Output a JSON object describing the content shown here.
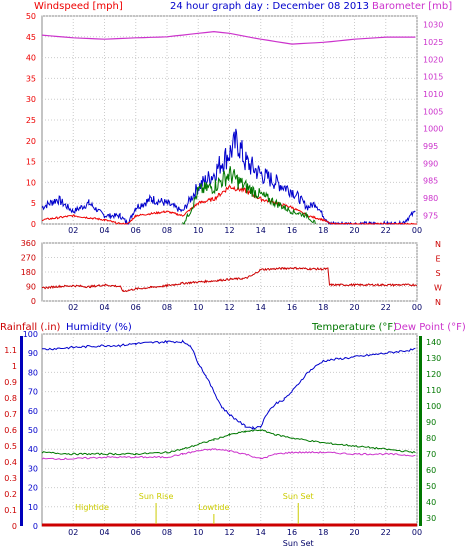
{
  "header": {
    "title": "24 hour graph day : December 08 2013",
    "left_label": "Windspeed [mph]",
    "right_label": "Barometer [mb]"
  },
  "bottom_header": {
    "rainfall": "Rainfall (.in)",
    "humidity": "Humidity (%)",
    "temperature": "Temperature (°F)",
    "dewpoint": "Dew Point (°F)"
  },
  "colors": {
    "wind": "#ee0000",
    "gust": "#0000cc",
    "green": "#007700",
    "barometer": "#cc33cc",
    "direction": "#cc0000",
    "humidity": "#0000cc",
    "temperature": "#007700",
    "dewpoint": "#cc33cc",
    "rain_axis": "#0000bb",
    "temp_axis": "#007700",
    "annotation": "#cccc00",
    "frame": "#888888",
    "grid": "#cccccc"
  },
  "chart_data": [
    {
      "type": "line",
      "name": "wind-barometer",
      "x_ticks": [
        "02",
        "04",
        "06",
        "08",
        "10",
        "12",
        "14",
        "16",
        "18",
        "20",
        "22",
        "00"
      ],
      "left_axis": {
        "label": "Windspeed [mph]",
        "ticks": [
          0,
          5,
          10,
          15,
          20,
          25,
          30,
          35,
          40,
          45,
          50
        ],
        "ylim": [
          0,
          50
        ]
      },
      "right_axis": {
        "label": "Barometer [mb]",
        "ticks": [
          975,
          980,
          985,
          990,
          995,
          1000,
          1005,
          1010,
          1015,
          1020,
          1025,
          1030
        ],
        "ylim": [
          972.5,
          1032.5
        ]
      },
      "series": [
        {
          "key": "gust",
          "axis": "left",
          "x": [
            0,
            1,
            2,
            3,
            4,
            5,
            5.5,
            6,
            7,
            8,
            9,
            10,
            11,
            11.5,
            12,
            12.5,
            13,
            14,
            15,
            16,
            17,
            17.5,
            18,
            18.5,
            19,
            20,
            21,
            22,
            23,
            23.9
          ],
          "values": [
            4,
            6,
            3,
            5,
            2,
            2,
            0,
            4,
            6,
            5,
            3,
            9,
            12,
            15,
            17,
            20,
            15,
            12,
            10,
            8,
            4,
            5,
            2,
            0,
            0,
            0,
            0,
            0,
            0,
            3
          ]
        },
        {
          "key": "wind",
          "axis": "left",
          "x": [
            0,
            2,
            4,
            5,
            5.5,
            6,
            8,
            9,
            10,
            11,
            12,
            13,
            14,
            15,
            16,
            17,
            18,
            18.5,
            24
          ],
          "values": [
            1,
            2,
            1,
            0,
            0,
            2,
            3,
            2,
            5,
            6,
            9,
            8,
            6,
            5,
            4,
            2,
            1,
            0,
            0
          ]
        },
        {
          "key": "green",
          "axis": "left",
          "x": [
            9,
            9.5,
            10,
            11,
            12,
            13,
            14,
            15,
            16,
            17,
            17.5
          ],
          "values": [
            0,
            3,
            8,
            9,
            12,
            9,
            7,
            5,
            3,
            2,
            0
          ]
        },
        {
          "key": "barometer",
          "axis": "right",
          "x": [
            0,
            2,
            4,
            6,
            8,
            10,
            11,
            12,
            14,
            16,
            18,
            20,
            22,
            23.9
          ],
          "values": [
            1027.0,
            1026.2,
            1025.8,
            1026.2,
            1026.5,
            1027.5,
            1028.0,
            1027.5,
            1025.8,
            1024.4,
            1024.9,
            1025.8,
            1026.4,
            1026.4
          ]
        }
      ]
    },
    {
      "type": "line",
      "name": "wind-direction",
      "x_ticks": [
        "02",
        "04",
        "06",
        "08",
        "10",
        "12",
        "14",
        "16",
        "18",
        "20",
        "22",
        "00"
      ],
      "left_axis": {
        "ticks": [
          0,
          90,
          180,
          270,
          360
        ],
        "ylim": [
          0,
          360
        ]
      },
      "right_axis": {
        "ticks": [
          "N",
          "W",
          "S",
          "E",
          "N"
        ]
      },
      "series": [
        {
          "key": "direction",
          "x": [
            0,
            1,
            2,
            3,
            4,
            5,
            5.2,
            6,
            7,
            8,
            9,
            10,
            11,
            12,
            13,
            13.5,
            14,
            15,
            16,
            17,
            18,
            18.3,
            18.4,
            20,
            22,
            24
          ],
          "values": [
            80,
            90,
            95,
            88,
            100,
            90,
            60,
            75,
            85,
            95,
            110,
            118,
            125,
            135,
            140,
            160,
            195,
            200,
            205,
            200,
            198,
            200,
            100,
            100,
            100,
            100
          ]
        }
      ]
    },
    {
      "type": "line",
      "name": "rain-humidity-temperature",
      "x_ticks": [
        "02",
        "04",
        "06",
        "08",
        "10",
        "12",
        "14",
        "16",
        "18",
        "20",
        "22",
        "00"
      ],
      "left_axis": {
        "label": "Humidity (%)",
        "ticks": [
          0,
          10,
          20,
          30,
          40,
          50,
          60,
          70,
          80,
          90,
          100
        ],
        "ylim": [
          0,
          100
        ]
      },
      "rain_axis": {
        "label": "Rainfall (.in)",
        "ticks": [
          0,
          0.1,
          0.2,
          0.3,
          0.4,
          0.5,
          0.6,
          0.7,
          0.8,
          0.9,
          1,
          1.1
        ],
        "ylim": [
          0,
          1.2
        ]
      },
      "right_axis": {
        "label": "Temperature (°F)",
        "ticks": [
          30,
          40,
          50,
          60,
          70,
          80,
          90,
          100,
          110,
          120,
          130,
          140
        ],
        "ylim": [
          25,
          145
        ]
      },
      "series": [
        {
          "key": "humidity",
          "axis": "left",
          "x": [
            0,
            2,
            4,
            5,
            6,
            8,
            9,
            9.5,
            10,
            10.5,
            11,
            11.5,
            12,
            12.5,
            13,
            13.5,
            14,
            14.5,
            15,
            15.5,
            16,
            16.5,
            17,
            18,
            20,
            22,
            23.9
          ],
          "values": [
            92,
            93,
            94,
            94,
            95,
            96,
            96,
            94,
            85,
            78,
            70,
            62,
            58,
            55,
            52,
            51,
            52,
            60,
            64,
            66,
            70,
            75,
            80,
            86,
            88,
            90,
            92
          ]
        },
        {
          "key": "temperature",
          "axis": "right",
          "x": [
            0,
            2,
            4,
            6,
            8,
            9,
            10,
            11,
            12,
            13,
            14,
            15,
            16,
            18,
            20,
            22,
            23.9
          ],
          "values": [
            71,
            70,
            70,
            70,
            71,
            73,
            76,
            79,
            82,
            84,
            85,
            82,
            80,
            77,
            75,
            73,
            71
          ]
        },
        {
          "key": "dewpoint",
          "axis": "right",
          "x": [
            0,
            2,
            4,
            6,
            8,
            9,
            10,
            11,
            12,
            13,
            14,
            15,
            16,
            18,
            20,
            22,
            23.9
          ],
          "values": [
            67,
            67,
            68,
            68,
            68,
            70,
            72,
            73,
            72,
            70,
            67,
            70,
            71,
            71,
            70,
            70,
            69
          ]
        }
      ],
      "annotations": [
        {
          "label": "Hightide",
          "x": 3.2,
          "row": "low",
          "marker": false
        },
        {
          "label": "Sun Rise",
          "x": 7.3,
          "row": "high",
          "marker": true
        },
        {
          "label": "Lowtide",
          "x": 11.0,
          "row": "low",
          "marker": true
        },
        {
          "label": "Sun Set",
          "x": 16.4,
          "row": "high",
          "marker": true
        }
      ],
      "bottom_x_labels": [
        "Sun Set"
      ]
    }
  ]
}
